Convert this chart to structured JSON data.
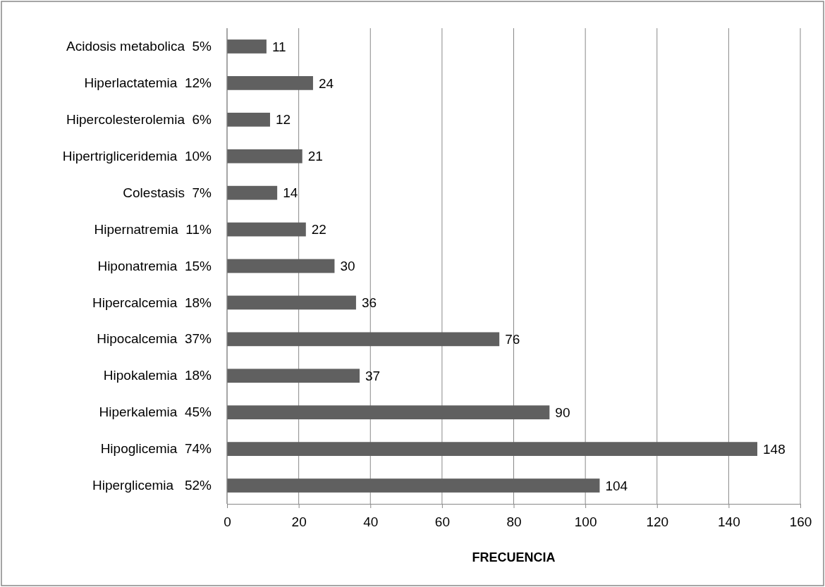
{
  "chart_data": {
    "type": "bar",
    "orientation": "horizontal",
    "xlabel": "FRECUENCIA",
    "categories": [
      "Acidosis metabolica  5%",
      "Hiperlactatemia  12%",
      "Hipercolesterolemia  6%",
      "Hipertrigliceridemia  10%",
      "Colestasis  7%",
      "Hipernatremia  11%",
      "Hiponatremia  15%",
      "Hipercalcemia  18%",
      "Hipocalcemia  37%",
      "Hipokalemia  18%",
      "Hiperkalemia  45%",
      "Hipoglicemia  74%",
      "Hiperglicemia   52%"
    ],
    "values": [
      11,
      24,
      12,
      21,
      14,
      22,
      30,
      36,
      76,
      37,
      90,
      148,
      104
    ],
    "color": "#606060",
    "xlim": [
      0,
      160
    ],
    "xticks": [
      0,
      20,
      40,
      60,
      80,
      100,
      120,
      140,
      160
    ],
    "grid": "x",
    "data_labels": true
  }
}
